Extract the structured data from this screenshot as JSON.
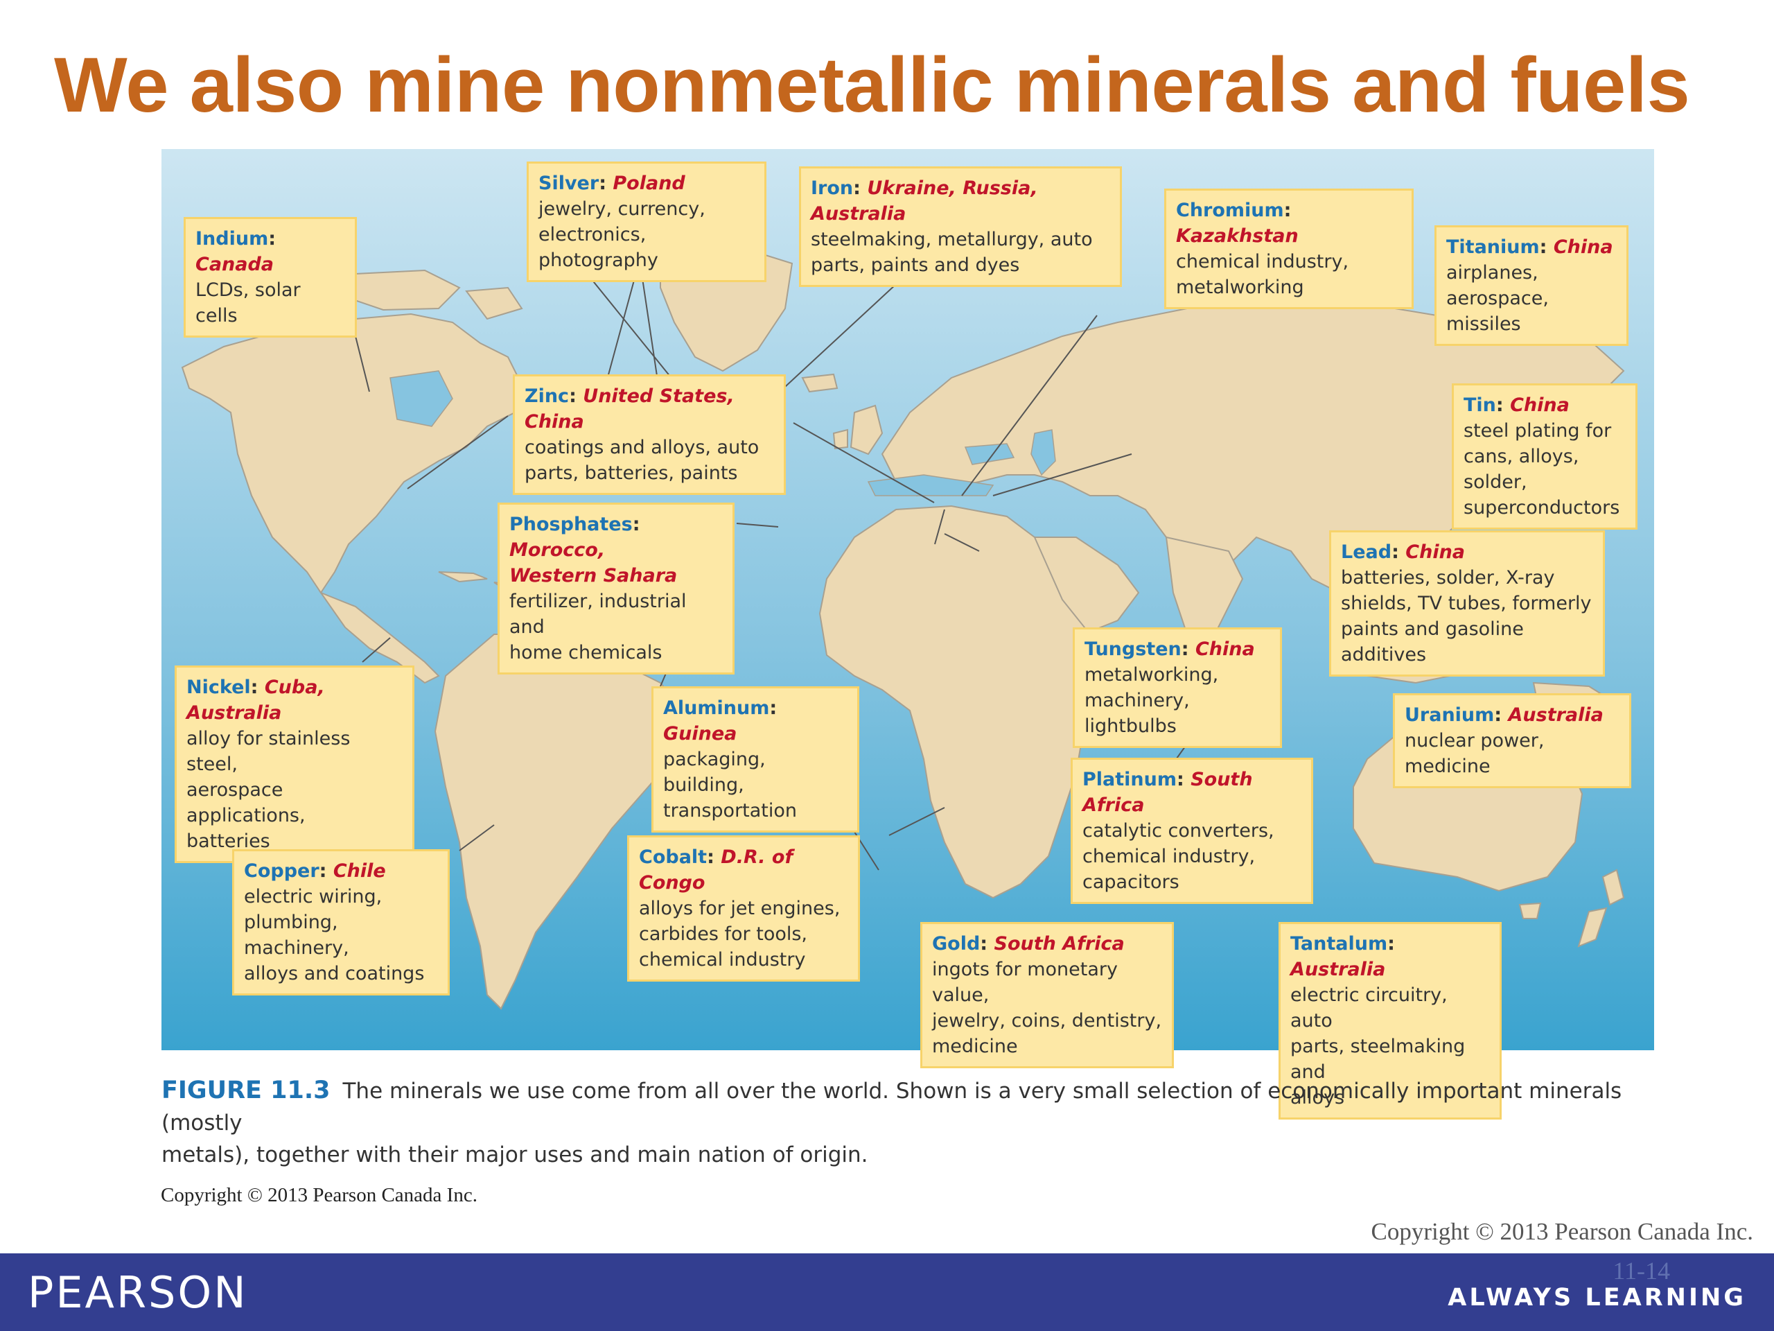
{
  "title": "We also mine nonmetallic minerals and fuels",
  "callouts": {
    "silver": {
      "mineral": "Silver",
      "country": "Poland",
      "uses": [
        "jewelry, currency,",
        "electronics, photography"
      ]
    },
    "iron": {
      "mineral": "Iron",
      "country": "Ukraine, Russia, Australia",
      "uses": [
        "steelmaking, metallurgy, auto",
        "parts, paints and dyes"
      ]
    },
    "chromium": {
      "mineral": "Chromium",
      "country": "Kazakhstan",
      "uses": [
        "chemical industry,",
        "metalworking"
      ]
    },
    "indium": {
      "mineral": "Indium",
      "country": "Canada",
      "uses": [
        "LCDs, solar cells"
      ]
    },
    "titanium": {
      "mineral": "Titanium",
      "country": "China",
      "uses": [
        "airplanes, aerospace,",
        "missiles"
      ]
    },
    "zinc": {
      "mineral": "Zinc",
      "country": "United States, China",
      "uses": [
        "coatings and alloys, auto",
        "parts, batteries, paints"
      ]
    },
    "tin": {
      "mineral": "Tin",
      "country": "China",
      "uses": [
        "steel plating for",
        "cans, alloys, solder,",
        "superconductors"
      ]
    },
    "phosphates": {
      "mineral": "Phosphates",
      "country": "Morocco,",
      "country2": "Western Sahara",
      "uses": [
        "fertilizer, industrial and",
        "home chemicals"
      ]
    },
    "lead": {
      "mineral": "Lead",
      "country": "China",
      "uses": [
        "batteries, solder, X-ray",
        "shields, TV tubes, formerly",
        "paints and gasoline additives"
      ]
    },
    "tungsten": {
      "mineral": "Tungsten",
      "country": "China",
      "uses": [
        "metalworking,",
        "machinery, lightbulbs"
      ]
    },
    "nickel": {
      "mineral": "Nickel",
      "country": "Cuba, Australia",
      "uses": [
        "alloy for stainless steel,",
        "aerospace applications,",
        "batteries"
      ]
    },
    "aluminum": {
      "mineral": "Aluminum",
      "country": "Guinea",
      "uses": [
        "packaging, building,",
        "transportation"
      ]
    },
    "uranium": {
      "mineral": "Uranium",
      "country": "Australia",
      "uses": [
        "nuclear power, medicine"
      ]
    },
    "platinum": {
      "mineral": "Platinum",
      "country": "South Africa",
      "uses": [
        "catalytic converters,",
        "chemical industry,",
        "capacitors"
      ]
    },
    "copper": {
      "mineral": "Copper",
      "country": "Chile",
      "uses": [
        "electric wiring,",
        "plumbing, machinery,",
        "alloys and coatings"
      ]
    },
    "cobalt": {
      "mineral": "Cobalt",
      "country": "D.R. of Congo",
      "uses": [
        "alloys for jet engines,",
        "carbides for tools,",
        "chemical industry"
      ]
    },
    "gold": {
      "mineral": "Gold",
      "country": "South Africa",
      "uses": [
        "ingots for monetary value,",
        "jewelry, coins, dentistry,",
        "medicine"
      ]
    },
    "tantalum": {
      "mineral": "Tantalum",
      "country": "Australia",
      "uses": [
        "electric circuitry, auto",
        "parts, steelmaking and",
        "alloys"
      ]
    }
  },
  "figure": {
    "label": "FIGURE 11.3",
    "caption_line1": "The minerals we use come from all over the world. Shown is a very small selection of economically important minerals (mostly",
    "caption_line2": "metals), together with their major uses and main nation of origin."
  },
  "copyright_inner": "Copyright © 2013 Pearson Canada Inc.",
  "copyright_slide": "Copyright © 2013 Pearson Canada Inc.",
  "footer": {
    "logo": "PEARSON",
    "slide_number": "11-14",
    "tagline": "ALWAYS LEARNING"
  },
  "colors": {
    "title": "#c4661d",
    "mineral_name": "#1e73b3",
    "country_name": "#c0142a",
    "callout_bg": "#fde8a6",
    "land": "#ecd9b3",
    "ocean_top": "#cde6f2",
    "ocean_bottom": "#3aa3cf",
    "footer_bar": "#333e90"
  }
}
